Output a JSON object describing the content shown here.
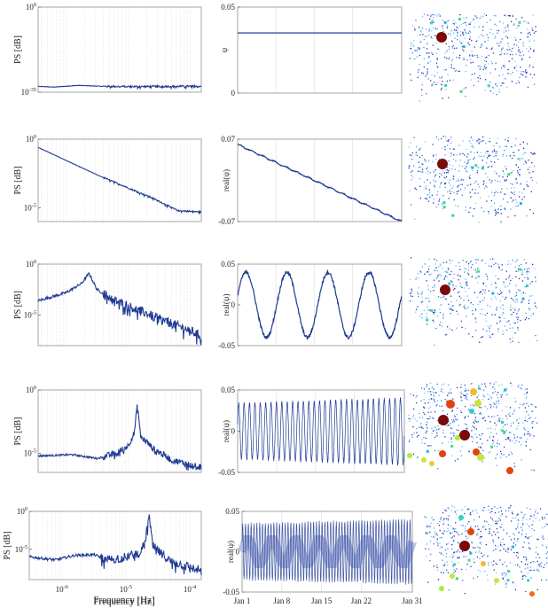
{
  "figure": {
    "xlabel": "Frequency [Hz]",
    "colors": {
      "line": "#1f3a93",
      "line_light": "#a9b3de",
      "axis": "#b5b5b5",
      "grid": "#d9d9d9"
    }
  },
  "chart_data": [
    {
      "panel": "spectrum-1",
      "type": "line",
      "ylabel": "PS [dB]",
      "xscale": "log",
      "yscale": "log",
      "xlim_log10": [
        -6.45,
        -3.82
      ],
      "ylim_log10": [
        -35,
        0
      ],
      "yticks": [
        "10^0",
        "10^-35"
      ],
      "yticks_log10": [
        0,
        -35
      ],
      "points_log10": [
        [
          -6.45,
          -32.6
        ],
        [
          -6.2,
          -32.9
        ],
        [
          -5.8,
          -32.2
        ],
        [
          -5.4,
          -32.6
        ],
        [
          -4.8,
          -32.7
        ],
        [
          -3.82,
          -32.5
        ]
      ],
      "noise": 0.35
    },
    {
      "panel": "spectrum-2",
      "type": "line",
      "ylabel": "PS [dB]",
      "xscale": "log",
      "yscale": "log",
      "xlim_log10": [
        -6.45,
        -3.82
      ],
      "ylim_log10": [
        -6,
        0
      ],
      "yticks": [
        "10^0",
        "10^-5"
      ],
      "yticks_log10": [
        0,
        -5
      ],
      "points_log10": [
        [
          -6.45,
          -0.6
        ],
        [
          -5.5,
          -2.6
        ],
        [
          -4.6,
          -4.3
        ],
        [
          -4.2,
          -5.2
        ],
        [
          -3.82,
          -5.3
        ]
      ],
      "noise": 0.05
    },
    {
      "panel": "spectrum-3",
      "type": "line",
      "ylabel": "PS [dB]",
      "xscale": "log",
      "yscale": "log",
      "xlim_log10": [
        -6.45,
        -3.82
      ],
      "ylim_log10": [
        -8,
        0
      ],
      "yticks": [
        "10^0",
        "10^-5"
      ],
      "yticks_log10": [
        0,
        -5
      ],
      "points_log10": [
        [
          -6.45,
          -3.6
        ],
        [
          -6.0,
          -2.8
        ],
        [
          -5.75,
          -1.9
        ],
        [
          -5.63,
          -0.9
        ],
        [
          -5.5,
          -2.5
        ],
        [
          -5.2,
          -3.6
        ],
        [
          -4.8,
          -4.6
        ],
        [
          -4.4,
          -5.6
        ],
        [
          -4.0,
          -6.5
        ],
        [
          -3.82,
          -7.1
        ]
      ],
      "noise": 0.45
    },
    {
      "panel": "spectrum-4",
      "type": "line",
      "ylabel": "PS [dB]",
      "xscale": "log",
      "yscale": "log",
      "xlim_log10": [
        -6.45,
        -3.82
      ],
      "ylim_log10": [
        -6.5,
        0
      ],
      "yticks": [
        "10^0",
        "10^-5"
      ],
      "yticks_log10": [
        0,
        -5
      ],
      "points_log10": [
        [
          -6.45,
          -5.2
        ],
        [
          -5.9,
          -5.1
        ],
        [
          -5.5,
          -5.4
        ],
        [
          -5.2,
          -5.0
        ],
        [
          -5.0,
          -4.4
        ],
        [
          -4.9,
          -3.4
        ],
        [
          -4.85,
          -1.1
        ],
        [
          -4.8,
          -3.6
        ],
        [
          -4.6,
          -4.6
        ],
        [
          -4.3,
          -5.5
        ],
        [
          -4.0,
          -5.9
        ],
        [
          -3.82,
          -6.1
        ]
      ],
      "noise": 0.25
    },
    {
      "panel": "spectrum-5",
      "type": "line",
      "ylabel": "PS [dB]",
      "xlabel": "Frequency [Hz]",
      "xscale": "log",
      "yscale": "log",
      "xlim_log10": [
        -6.51,
        -3.82
      ],
      "ylim_log10": [
        -9,
        0
      ],
      "yticks": [
        "10^0",
        "10^-5"
      ],
      "yticks_log10": [
        0,
        -5
      ],
      "xticks": [
        "10^-6",
        "10^-5",
        "10^-4"
      ],
      "xticks_log10": [
        -6,
        -5,
        -4
      ],
      "points_log10": [
        [
          -6.51,
          -6.0
        ],
        [
          -6.1,
          -6.4
        ],
        [
          -5.8,
          -5.8
        ],
        [
          -5.5,
          -5.7
        ],
        [
          -5.3,
          -6.4
        ],
        [
          -5.0,
          -6.0
        ],
        [
          -4.8,
          -5.5
        ],
        [
          -4.7,
          -4.3
        ],
        [
          -4.64,
          -0.4
        ],
        [
          -4.58,
          -4.6
        ],
        [
          -4.3,
          -6.6
        ],
        [
          -4.05,
          -7.2
        ],
        [
          -3.82,
          -7.8
        ]
      ],
      "noise": 0.6
    },
    {
      "panel": "timeseries-1",
      "type": "line",
      "ylabel": "ψ",
      "xlim_days": [
        0,
        30
      ],
      "ylim": [
        0,
        0.05
      ],
      "yticks": [
        "0.05",
        "0"
      ],
      "yticks_values": [
        0.05,
        0
      ],
      "model": "constant",
      "value": 0.035
    },
    {
      "panel": "timeseries-2",
      "type": "line",
      "ylabel": "real(ψ)",
      "xlim_days": [
        0,
        30
      ],
      "ylim": [
        -0.07,
        0.07
      ],
      "yticks": [
        "0.07",
        "-0.07"
      ],
      "yticks_values": [
        0.07,
        -0.07
      ],
      "model": "linear",
      "start": 0.061,
      "end": -0.07
    },
    {
      "panel": "timeseries-3",
      "type": "line",
      "ylabel": "real(ψ)",
      "xlim_days": [
        0,
        30
      ],
      "ylim": [
        -0.05,
        0.05
      ],
      "yticks": [
        "0.05",
        "0",
        "-0.05"
      ],
      "yticks_values": [
        0.05,
        0,
        -0.05
      ],
      "model": "sine",
      "amplitude": 0.04,
      "period_days": 7.5,
      "amp_growth": 0
    },
    {
      "panel": "timeseries-4",
      "type": "line",
      "ylabel": "real(ψ)",
      "xlim_days": [
        0,
        30
      ],
      "ylim": [
        -0.05,
        0.05
      ],
      "yticks": [
        "0.05",
        "0",
        "-0.05"
      ],
      "yticks_values": [
        0.05,
        0,
        -0.05
      ],
      "model": "sine",
      "amplitude": 0.033,
      "period_days": 0.97,
      "amp_growth": 0.007
    },
    {
      "panel": "timeseries-5",
      "type": "line",
      "ylabel": "real(ψ)",
      "xlim_days": [
        0,
        30
      ],
      "ylim": [
        -0.05,
        0.05
      ],
      "yticks": [
        "0.05",
        "0",
        "-0.05"
      ],
      "yticks_values": [
        0.05,
        0,
        -0.05
      ],
      "model": "sine",
      "amplitude": 0.034,
      "period_days": 0.5,
      "amp_growth": 0.005,
      "xticks": [
        "Jan 1",
        "Jan 8",
        "Jan 15",
        "Jan 22",
        "Jan 31"
      ],
      "xticks_days": [
        0,
        7,
        14,
        21,
        30
      ]
    }
  ]
}
